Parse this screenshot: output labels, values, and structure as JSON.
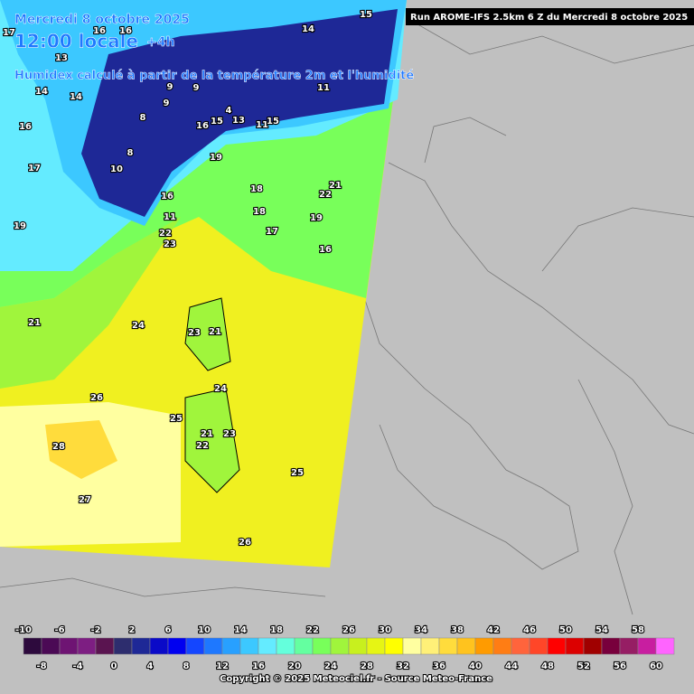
{
  "header": {
    "date": "Mercredi 8 octobre 2025",
    "time": "12:00 locale",
    "offset": "+4h",
    "description": "Humidex calculé à partir de la température 2m et l'humidité",
    "run": "Run AROME-IFS 2.5km 6 Z du Mercredi 8 octobre 2025"
  },
  "map_labels": [
    15,
    17,
    16,
    16,
    14,
    13,
    9,
    9,
    14,
    14,
    9,
    11,
    16,
    4,
    8,
    13,
    15,
    16,
    11,
    15,
    8,
    10,
    17,
    19,
    18,
    16,
    22,
    21,
    11,
    18,
    19,
    22,
    17,
    23,
    19,
    16,
    21,
    24,
    23,
    21,
    26,
    24,
    25,
    21,
    23,
    22,
    28,
    25,
    27,
    26
  ],
  "legend": {
    "top_labels": [
      -10,
      -6,
      -2,
      2,
      6,
      10,
      14,
      18,
      22,
      26,
      30,
      34,
      38,
      42,
      46,
      50,
      54,
      58
    ],
    "bottom_labels": [
      -8,
      -4,
      0,
      4,
      8,
      12,
      16,
      20,
      24,
      28,
      32,
      36,
      40,
      44,
      48,
      52,
      56,
      60
    ],
    "start": -10,
    "step": 2,
    "colors": [
      "#2d0a3d",
      "#4b0a55",
      "#6e1473",
      "#7d1e82",
      "#5a1450",
      "#2d2d6e",
      "#1e2896",
      "#0a0ac8",
      "#0000f0",
      "#1446ff",
      "#1e78ff",
      "#28a0ff",
      "#3cc8ff",
      "#64ebff",
      "#64ffdc",
      "#64ffa0",
      "#78ff5a",
      "#a0f53c",
      "#c8f01e",
      "#e6f514",
      "#ffff00",
      "#ffffa0",
      "#fff078",
      "#ffdc3c",
      "#ffc31e",
      "#ff9b00",
      "#ff7d14",
      "#ff643c",
      "#ff4628",
      "#ff0000",
      "#dc0000",
      "#a00000",
      "#78003c",
      "#961e64",
      "#c81ea0",
      "#ff64ff"
    ]
  },
  "footer": {
    "copyright": "Copyright © 2025 Meteociel.fr - Source Meteo-France"
  }
}
